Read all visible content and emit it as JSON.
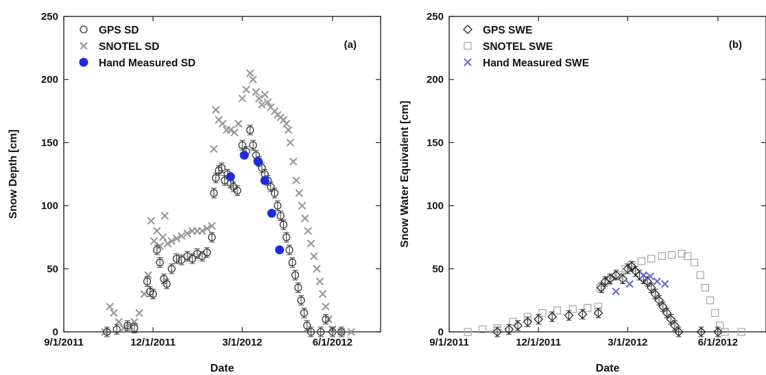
{
  "chart_data": [
    {
      "type": "scatter",
      "panel_label": "(a)",
      "xlabel": "Date",
      "ylabel": "Snow Depth [cm]",
      "xlim": [
        "2011-09-01",
        "2012-07-20"
      ],
      "ylim": [
        0,
        250
      ],
      "x_ticks": [
        "9/1/2011",
        "12/1/2011",
        "3/1/2012",
        "6/1/2012"
      ],
      "x_tick_dates": [
        "2011-09-01",
        "2011-12-01",
        "2012-03-01",
        "2012-06-01"
      ],
      "y_ticks": [
        0,
        50,
        100,
        150,
        200,
        250
      ],
      "legend": "top-left",
      "grid": false,
      "series": [
        {
          "name": "GPS SD",
          "marker": "open-circle",
          "color": "#333333",
          "error_bars": true,
          "points": [
            [
              "2011-10-15",
              0
            ],
            [
              "2011-10-25",
              2
            ],
            [
              "2011-11-05",
              5
            ],
            [
              "2011-11-12",
              3
            ],
            [
              "2011-11-25",
              40
            ],
            [
              "2011-11-28",
              32
            ],
            [
              "2011-12-01",
              30
            ],
            [
              "2011-12-05",
              65
            ],
            [
              "2011-12-08",
              55
            ],
            [
              "2011-12-12",
              42
            ],
            [
              "2011-12-15",
              38
            ],
            [
              "2011-12-20",
              50
            ],
            [
              "2011-12-25",
              58
            ],
            [
              "2011-12-30",
              57
            ],
            [
              "2012-01-05",
              60
            ],
            [
              "2012-01-10",
              58
            ],
            [
              "2012-01-15",
              62
            ],
            [
              "2012-01-20",
              60
            ],
            [
              "2012-01-25",
              63
            ],
            [
              "2012-01-30",
              75
            ],
            [
              "2012-02-01",
              110
            ],
            [
              "2012-02-03",
              122
            ],
            [
              "2012-02-06",
              128
            ],
            [
              "2012-02-09",
              130
            ],
            [
              "2012-02-12",
              120
            ],
            [
              "2012-02-15",
              125
            ],
            [
              "2012-02-18",
              118
            ],
            [
              "2012-02-21",
              115
            ],
            [
              "2012-02-25",
              112
            ],
            [
              "2012-03-01",
              148
            ],
            [
              "2012-03-05",
              143
            ],
            [
              "2012-03-09",
              160
            ],
            [
              "2012-03-12",
              148
            ],
            [
              "2012-03-15",
              140
            ],
            [
              "2012-03-18",
              135
            ],
            [
              "2012-03-21",
              130
            ],
            [
              "2012-03-24",
              125
            ],
            [
              "2012-03-27",
              120
            ],
            [
              "2012-03-30",
              115
            ],
            [
              "2012-04-03",
              110
            ],
            [
              "2012-04-06",
              100
            ],
            [
              "2012-04-09",
              92
            ],
            [
              "2012-04-12",
              85
            ],
            [
              "2012-04-15",
              75
            ],
            [
              "2012-04-18",
              65
            ],
            [
              "2012-04-21",
              55
            ],
            [
              "2012-04-24",
              45
            ],
            [
              "2012-04-27",
              35
            ],
            [
              "2012-04-30",
              25
            ],
            [
              "2012-05-03",
              15
            ],
            [
              "2012-05-06",
              5
            ],
            [
              "2012-05-10",
              0
            ],
            [
              "2012-05-20",
              0
            ],
            [
              "2012-05-25",
              10
            ],
            [
              "2012-06-01",
              0
            ],
            [
              "2012-06-10",
              0
            ]
          ]
        },
        {
          "name": "SNOTEL SD",
          "marker": "x",
          "color": "#999999",
          "points": [
            [
              "2011-10-13",
              0
            ],
            [
              "2011-10-18",
              20
            ],
            [
              "2011-10-22",
              15
            ],
            [
              "2011-10-27",
              8
            ],
            [
              "2011-11-01",
              3
            ],
            [
              "2011-11-07",
              5
            ],
            [
              "2011-11-12",
              8
            ],
            [
              "2011-11-17",
              15
            ],
            [
              "2011-11-22",
              30
            ],
            [
              "2011-11-26",
              45
            ],
            [
              "2011-11-29",
              88
            ],
            [
              "2011-12-02",
              72
            ],
            [
              "2011-12-05",
              80
            ],
            [
              "2011-12-08",
              68
            ],
            [
              "2011-12-11",
              75
            ],
            [
              "2011-12-13",
              92
            ],
            [
              "2011-12-16",
              70
            ],
            [
              "2011-12-20",
              72
            ],
            [
              "2011-12-25",
              74
            ],
            [
              "2011-12-30",
              76
            ],
            [
              "2012-01-05",
              78
            ],
            [
              "2012-01-10",
              80
            ],
            [
              "2012-01-15",
              80
            ],
            [
              "2012-01-20",
              80
            ],
            [
              "2012-01-25",
              82
            ],
            [
              "2012-01-30",
              84
            ],
            [
              "2012-02-01",
              145
            ],
            [
              "2012-02-03",
              176
            ],
            [
              "2012-02-06",
              168
            ],
            [
              "2012-02-10",
              165
            ],
            [
              "2012-02-14",
              160
            ],
            [
              "2012-02-18",
              160
            ],
            [
              "2012-02-22",
              158
            ],
            [
              "2012-02-26",
              165
            ],
            [
              "2012-03-01",
              185
            ],
            [
              "2012-03-05",
              192
            ],
            [
              "2012-03-09",
              205
            ],
            [
              "2012-03-12",
              200
            ],
            [
              "2012-03-15",
              190
            ],
            [
              "2012-03-18",
              185
            ],
            [
              "2012-03-21",
              180
            ],
            [
              "2012-03-24",
              188
            ],
            [
              "2012-03-27",
              182
            ],
            [
              "2012-03-30",
              178
            ],
            [
              "2012-04-03",
              175
            ],
            [
              "2012-04-06",
              172
            ],
            [
              "2012-04-09",
              170
            ],
            [
              "2012-04-12",
              168
            ],
            [
              "2012-04-15",
              165
            ],
            [
              "2012-04-17",
              160
            ],
            [
              "2012-04-19",
              150
            ],
            [
              "2012-04-22",
              135
            ],
            [
              "2012-04-25",
              120
            ],
            [
              "2012-04-28",
              110
            ],
            [
              "2012-05-01",
              100
            ],
            [
              "2012-05-04",
              90
            ],
            [
              "2012-05-07",
              80
            ],
            [
              "2012-05-10",
              70
            ],
            [
              "2012-05-13",
              60
            ],
            [
              "2012-05-16",
              50
            ],
            [
              "2012-05-19",
              40
            ],
            [
              "2012-05-22",
              30
            ],
            [
              "2012-05-25",
              20
            ],
            [
              "2012-05-28",
              10
            ],
            [
              "2012-06-01",
              2
            ],
            [
              "2012-06-10",
              0
            ],
            [
              "2012-06-20",
              0
            ]
          ]
        },
        {
          "name": "Hand Measured SD",
          "marker": "filled-circle",
          "color": "#1f2bdc",
          "points": [
            [
              "2012-02-18",
              123
            ],
            [
              "2012-03-03",
              140
            ],
            [
              "2012-03-17",
              135
            ],
            [
              "2012-03-24",
              120
            ],
            [
              "2012-03-31",
              94
            ],
            [
              "2012-04-08",
              65
            ]
          ]
        }
      ]
    },
    {
      "type": "scatter",
      "panel_label": "(b)",
      "xlabel": "Date",
      "ylabel": "Snow Water Equivalent [cm]",
      "xlim": [
        "2011-09-01",
        "2012-07-20"
      ],
      "ylim": [
        0,
        250
      ],
      "x_ticks": [
        "9/1/2011",
        "12/1/2011",
        "3/1/2012",
        "6/1/2012"
      ],
      "x_tick_dates": [
        "2011-09-01",
        "2011-12-01",
        "2012-03-01",
        "2012-06-01"
      ],
      "y_ticks": [
        0,
        50,
        100,
        150,
        200,
        250
      ],
      "legend": "top-left",
      "grid": false,
      "series": [
        {
          "name": "GPS SWE",
          "marker": "open-diamond",
          "color": "#222222",
          "error_bars": true,
          "points": [
            [
              "2011-10-20",
              0
            ],
            [
              "2011-11-01",
              2
            ],
            [
              "2011-11-10",
              5
            ],
            [
              "2011-11-20",
              8
            ],
            [
              "2011-12-01",
              10
            ],
            [
              "2011-12-15",
              12
            ],
            [
              "2012-01-01",
              13
            ],
            [
              "2012-01-15",
              14
            ],
            [
              "2012-01-31",
              15
            ],
            [
              "2012-02-03",
              35
            ],
            [
              "2012-02-07",
              40
            ],
            [
              "2012-02-12",
              42
            ],
            [
              "2012-02-18",
              45
            ],
            [
              "2012-02-25",
              42
            ],
            [
              "2012-03-01",
              50
            ],
            [
              "2012-03-05",
              52
            ],
            [
              "2012-03-09",
              48
            ],
            [
              "2012-03-13",
              45
            ],
            [
              "2012-03-17",
              42
            ],
            [
              "2012-03-21",
              40
            ],
            [
              "2012-03-25",
              35
            ],
            [
              "2012-03-29",
              30
            ],
            [
              "2012-04-02",
              25
            ],
            [
              "2012-04-06",
              20
            ],
            [
              "2012-04-10",
              15
            ],
            [
              "2012-04-14",
              10
            ],
            [
              "2012-04-18",
              5
            ],
            [
              "2012-04-22",
              0
            ],
            [
              "2012-05-15",
              0
            ],
            [
              "2012-06-01",
              0
            ]
          ]
        },
        {
          "name": "SNOTEL SWE",
          "marker": "open-square",
          "color": "#aaaaaa",
          "points": [
            [
              "2011-09-20",
              0
            ],
            [
              "2011-10-05",
              2
            ],
            [
              "2011-10-20",
              3
            ],
            [
              "2011-11-05",
              8
            ],
            [
              "2011-11-20",
              12
            ],
            [
              "2011-12-05",
              15
            ],
            [
              "2011-12-20",
              17
            ],
            [
              "2012-01-05",
              18
            ],
            [
              "2012-01-20",
              19
            ],
            [
              "2012-01-31",
              20
            ],
            [
              "2012-02-02",
              35
            ],
            [
              "2012-02-10",
              40
            ],
            [
              "2012-02-20",
              45
            ],
            [
              "2012-02-28",
              50
            ],
            [
              "2012-03-05",
              53
            ],
            [
              "2012-03-15",
              56
            ],
            [
              "2012-03-25",
              58
            ],
            [
              "2012-04-05",
              60
            ],
            [
              "2012-04-15",
              61
            ],
            [
              "2012-04-25",
              62
            ],
            [
              "2012-05-01",
              60
            ],
            [
              "2012-05-08",
              55
            ],
            [
              "2012-05-14",
              45
            ],
            [
              "2012-05-19",
              35
            ],
            [
              "2012-05-24",
              25
            ],
            [
              "2012-05-29",
              15
            ],
            [
              "2012-06-03",
              5
            ],
            [
              "2012-06-08",
              0
            ],
            [
              "2012-06-25",
              0
            ]
          ]
        },
        {
          "name": "Hand Measured SWE",
          "marker": "x",
          "color": "#6b6bd6",
          "points": [
            [
              "2012-02-18",
              32
            ],
            [
              "2012-03-03",
              38
            ],
            [
              "2012-03-17",
              45
            ],
            [
              "2012-03-24",
              44
            ],
            [
              "2012-03-31",
              40
            ],
            [
              "2012-04-08",
              38
            ]
          ]
        }
      ]
    }
  ]
}
